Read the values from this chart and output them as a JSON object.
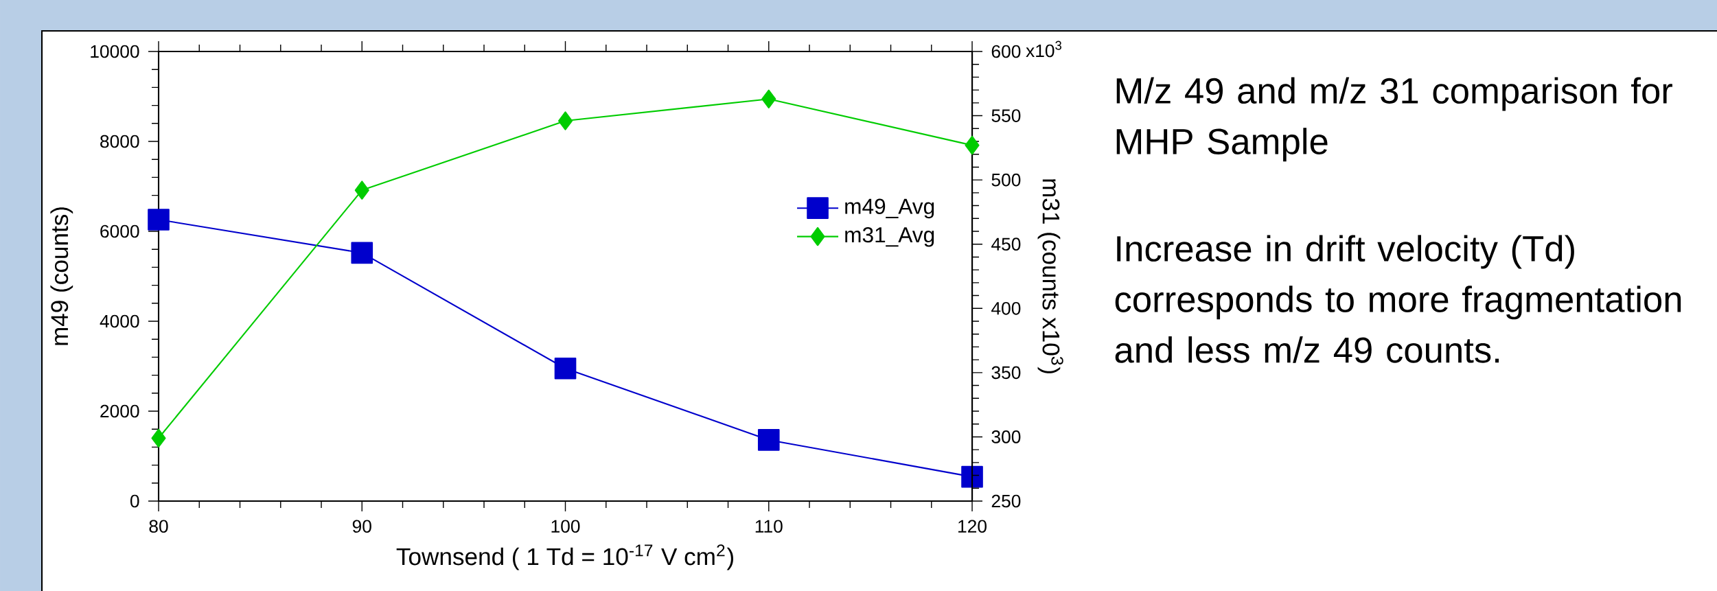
{
  "chart_data": {
    "type": "line",
    "title": "M/z 49 and m/z 31 comparison for MHP Sample",
    "annotations": [
      "x10$^{3}$",
      "Increase in drift velocity (Td) corresponds to more fragmentation and less m/z 49 counts."
    ],
    "xlabel": "Townsend ( 1 Td = 10$^{-17}$ V cm$^{2}$)",
    "ylabel": "m49 (counts)",
    "y2label": "m31 (counts x10$^{3}$)",
    "x": [
      80,
      90,
      100,
      110,
      120
    ],
    "series": [
      {
        "name": "m49_Avg",
        "color": "#0000cc",
        "marker": "square",
        "values": [
          6260,
          5520,
          2950,
          1360,
          540
        ]
      },
      {
        "name": "m31_Avg",
        "color": "#00cc00",
        "marker": "diamond",
        "axis": "y2",
        "values": [
          299,
          492,
          546,
          563,
          527
        ]
      }
    ],
    "xlim": [
      80,
      120
    ],
    "xticks": [
      80,
      90,
      100,
      110,
      120
    ],
    "ylim": [
      0,
      10000
    ],
    "yticks": [
      0,
      2000,
      4000,
      6000,
      8000,
      10000
    ],
    "y2lim": [
      250,
      600
    ],
    "y2ticks": [
      250,
      300,
      350,
      400,
      450,
      500,
      550,
      600
    ],
    "legend": "right",
    "grid": false,
    "line_style": "solid"
  }
}
